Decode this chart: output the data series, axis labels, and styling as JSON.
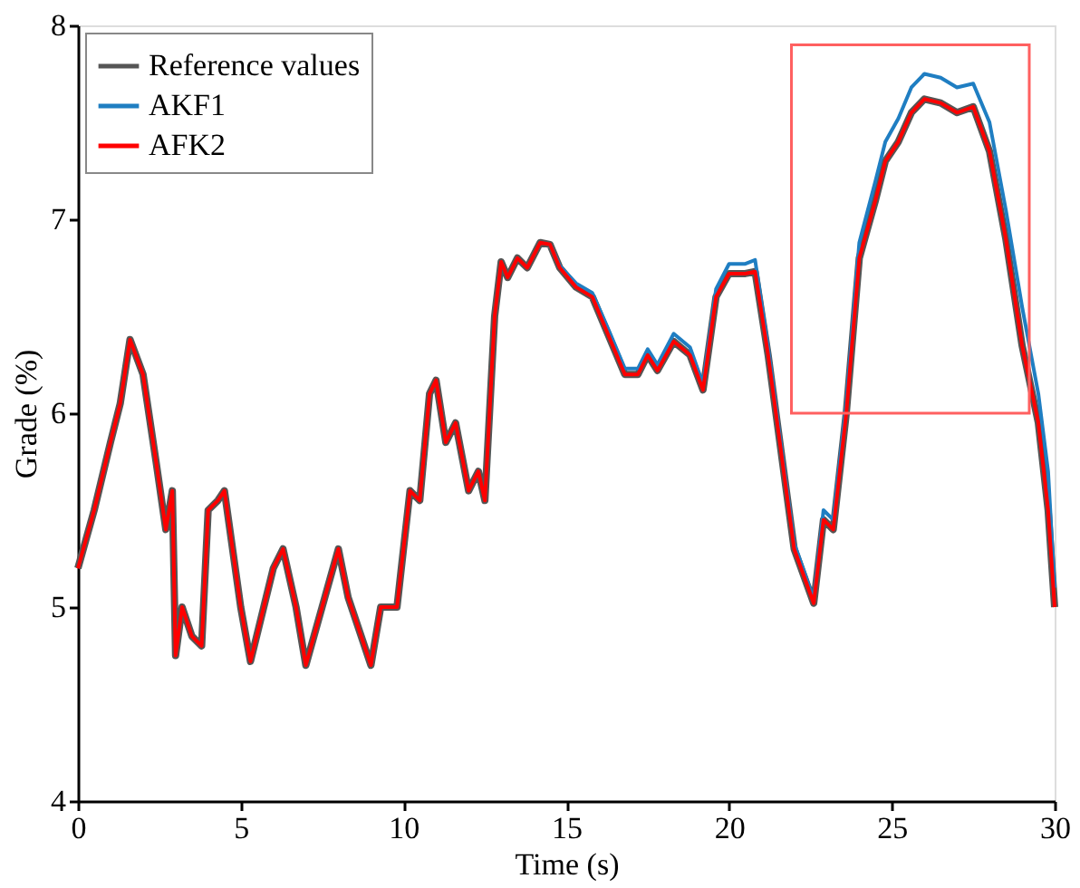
{
  "chart_data": {
    "type": "line",
    "xlabel": "Time (s)",
    "ylabel": "Grade (%)",
    "xlim": [
      0,
      30
    ],
    "ylim": [
      4,
      8
    ],
    "xticks": [
      0,
      5,
      10,
      15,
      20,
      25,
      30
    ],
    "yticks": [
      4,
      5,
      6,
      7,
      8
    ],
    "grid": false,
    "legend": "top left",
    "line_style": "solid",
    "marker": "none",
    "x": [
      0,
      0.5,
      1.0,
      1.3,
      1.6,
      2.0,
      2.4,
      2.7,
      2.9,
      3.0,
      3.2,
      3.5,
      3.8,
      4.0,
      4.3,
      4.5,
      5.0,
      5.3,
      6.0,
      6.3,
      6.7,
      7.0,
      7.5,
      8.0,
      8.3,
      8.7,
      9.0,
      9.3,
      9.8,
      10.2,
      10.5,
      10.8,
      11.0,
      11.3,
      11.6,
      12.0,
      12.3,
      12.5,
      12.8,
      13.0,
      13.2,
      13.5,
      13.8,
      14.2,
      14.5,
      14.8,
      15.3,
      15.8,
      16.3,
      16.8,
      17.2,
      17.5,
      17.8,
      18.3,
      18.8,
      19.2,
      19.6,
      20.0,
      20.5,
      20.8,
      21.2,
      21.6,
      22.0,
      22.6,
      22.9,
      23.2,
      23.6,
      24.0,
      24.5,
      24.8,
      25.2,
      25.6,
      26.0,
      26.5,
      27.0,
      27.5,
      28.0,
      28.5,
      29.0,
      29.5,
      29.8,
      30
    ],
    "series": [
      {
        "name": "Reference values",
        "color": "#555555",
        "values": [
          5.2,
          5.5,
          5.85,
          6.05,
          6.38,
          6.2,
          5.75,
          5.4,
          5.6,
          4.75,
          5.0,
          4.85,
          4.8,
          5.5,
          5.55,
          5.6,
          5.0,
          4.72,
          5.2,
          5.3,
          5.0,
          4.7,
          5.0,
          5.3,
          5.05,
          4.85,
          4.7,
          5.0,
          5.0,
          5.6,
          5.55,
          6.1,
          6.17,
          5.85,
          5.95,
          5.6,
          5.7,
          5.55,
          6.5,
          6.78,
          6.7,
          6.8,
          6.75,
          6.88,
          6.87,
          6.75,
          6.65,
          6.6,
          6.4,
          6.2,
          6.2,
          6.3,
          6.22,
          6.37,
          6.3,
          6.12,
          6.6,
          6.72,
          6.72,
          6.73,
          6.3,
          5.8,
          5.3,
          5.02,
          5.45,
          5.4,
          6.0,
          6.8,
          7.1,
          7.3,
          7.4,
          7.55,
          7.62,
          7.6,
          7.55,
          7.58,
          7.35,
          6.9,
          6.35,
          5.95,
          5.5,
          5.0
        ]
      },
      {
        "name": "AKF1",
        "color": "#1f7ec2",
        "values": [
          null,
          null,
          null,
          null,
          null,
          null,
          null,
          null,
          null,
          null,
          null,
          null,
          null,
          null,
          null,
          null,
          null,
          null,
          null,
          null,
          null,
          null,
          null,
          null,
          null,
          null,
          null,
          null,
          null,
          null,
          null,
          null,
          null,
          null,
          null,
          null,
          null,
          null,
          null,
          null,
          null,
          null,
          null,
          null,
          6.87,
          6.76,
          6.67,
          6.62,
          6.43,
          6.23,
          6.23,
          6.33,
          6.25,
          6.41,
          6.34,
          6.15,
          6.64,
          6.77,
          6.77,
          6.79,
          6.34,
          5.83,
          5.33,
          5.04,
          5.5,
          5.45,
          6.05,
          6.88,
          7.2,
          7.4,
          7.52,
          7.68,
          7.75,
          7.73,
          7.68,
          7.7,
          7.5,
          7.05,
          6.55,
          6.1,
          5.7,
          5.1
        ]
      },
      {
        "name": "AFK2",
        "color": "#ff0000",
        "values": [
          5.2,
          5.5,
          5.85,
          6.05,
          6.38,
          6.2,
          5.75,
          5.4,
          5.6,
          4.75,
          5.0,
          4.85,
          4.8,
          5.5,
          5.55,
          5.6,
          5.0,
          4.72,
          5.2,
          5.3,
          5.0,
          4.7,
          5.0,
          5.3,
          5.05,
          4.85,
          4.7,
          5.0,
          5.0,
          5.6,
          5.55,
          6.1,
          6.17,
          5.85,
          5.95,
          5.6,
          5.7,
          5.55,
          6.5,
          6.78,
          6.7,
          6.8,
          6.75,
          6.88,
          6.87,
          6.75,
          6.65,
          6.6,
          6.4,
          6.2,
          6.2,
          6.3,
          6.22,
          6.37,
          6.3,
          6.12,
          6.6,
          6.72,
          6.72,
          6.73,
          6.3,
          5.8,
          5.3,
          5.02,
          5.45,
          5.4,
          6.0,
          6.8,
          7.1,
          7.3,
          7.4,
          7.55,
          7.62,
          7.6,
          7.55,
          7.58,
          7.35,
          6.9,
          6.35,
          5.95,
          5.5,
          5.0
        ]
      }
    ]
  }
}
